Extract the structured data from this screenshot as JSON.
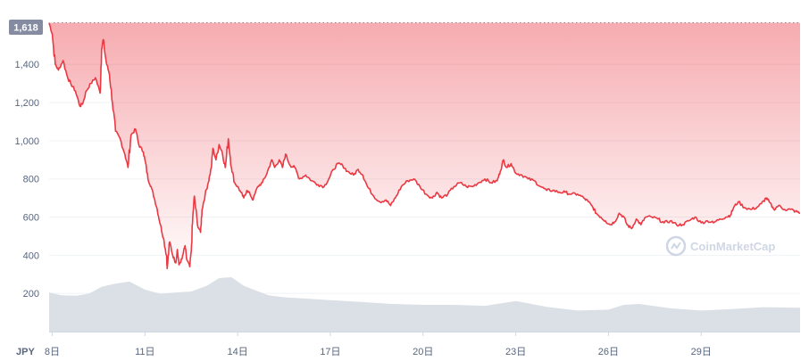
{
  "chart_data": {
    "type": "area",
    "currency_label": "JPY",
    "watermark": "CoinMarketCap",
    "colors": {
      "line": "#ea3943",
      "area_top": "#ea3943",
      "volume": "#d5dae3",
      "badge": "#858ca2",
      "grid": "#eff2f5",
      "axis_text": "#58667e"
    },
    "ylim": [
      0,
      1700
    ],
    "yticks": [
      200,
      400,
      600,
      800,
      1000,
      1200,
      1400
    ],
    "current_price_label": "1,618",
    "current_price": 1618,
    "xlim": [
      7.9,
      32.2
    ],
    "xticks": [
      {
        "x": 8,
        "label": "8日"
      },
      {
        "x": 11,
        "label": "11日"
      },
      {
        "x": 14,
        "label": "14日"
      },
      {
        "x": 17,
        "label": "17日"
      },
      {
        "x": 20,
        "label": "20日"
      },
      {
        "x": 23,
        "label": "23日"
      },
      {
        "x": 26,
        "label": "26日"
      },
      {
        "x": 29,
        "label": "29日"
      }
    ],
    "price": [
      [
        7.9,
        1618
      ],
      [
        8.0,
        1560
      ],
      [
        8.1,
        1400
      ],
      [
        8.2,
        1370
      ],
      [
        8.35,
        1420
      ],
      [
        8.5,
        1330
      ],
      [
        8.6,
        1300
      ],
      [
        8.75,
        1260
      ],
      [
        8.9,
        1180
      ],
      [
        9.0,
        1200
      ],
      [
        9.1,
        1260
      ],
      [
        9.25,
        1300
      ],
      [
        9.4,
        1330
      ],
      [
        9.55,
        1250
      ],
      [
        9.6,
        1480
      ],
      [
        9.65,
        1530
      ],
      [
        9.75,
        1410
      ],
      [
        9.85,
        1350
      ],
      [
        9.95,
        1200
      ],
      [
        10.05,
        1050
      ],
      [
        10.2,
        1010
      ],
      [
        10.35,
        930
      ],
      [
        10.45,
        860
      ],
      [
        10.55,
        1030
      ],
      [
        10.7,
        1060
      ],
      [
        10.8,
        980
      ],
      [
        10.95,
        940
      ],
      [
        11.0,
        900
      ],
      [
        11.1,
        800
      ],
      [
        11.2,
        760
      ],
      [
        11.3,
        700
      ],
      [
        11.4,
        640
      ],
      [
        11.5,
        560
      ],
      [
        11.6,
        490
      ],
      [
        11.7,
        400
      ],
      [
        11.72,
        330
      ],
      [
        11.8,
        470
      ],
      [
        11.9,
        400
      ],
      [
        12.0,
        360
      ],
      [
        12.05,
        430
      ],
      [
        12.1,
        350
      ],
      [
        12.2,
        380
      ],
      [
        12.3,
        450
      ],
      [
        12.35,
        380
      ],
      [
        12.45,
        340
      ],
      [
        12.5,
        420
      ],
      [
        12.55,
        600
      ],
      [
        12.6,
        710
      ],
      [
        12.7,
        560
      ],
      [
        12.8,
        520
      ],
      [
        12.85,
        640
      ],
      [
        12.95,
        720
      ],
      [
        13.05,
        780
      ],
      [
        13.15,
        860
      ],
      [
        13.2,
        960
      ],
      [
        13.3,
        900
      ],
      [
        13.4,
        980
      ],
      [
        13.5,
        940
      ],
      [
        13.6,
        860
      ],
      [
        13.7,
        1010
      ],
      [
        13.8,
        860
      ],
      [
        13.9,
        780
      ],
      [
        14.0,
        760
      ],
      [
        14.1,
        730
      ],
      [
        14.2,
        700
      ],
      [
        14.3,
        740
      ],
      [
        14.4,
        720
      ],
      [
        14.5,
        690
      ],
      [
        14.65,
        760
      ],
      [
        14.8,
        780
      ],
      [
        14.95,
        830
      ],
      [
        15.1,
        900
      ],
      [
        15.2,
        860
      ],
      [
        15.35,
        900
      ],
      [
        15.45,
        860
      ],
      [
        15.55,
        930
      ],
      [
        15.7,
        870
      ],
      [
        15.85,
        860
      ],
      [
        16.0,
        800
      ],
      [
        16.2,
        820
      ],
      [
        16.4,
        790
      ],
      [
        16.6,
        770
      ],
      [
        16.8,
        760
      ],
      [
        16.95,
        800
      ],
      [
        17.1,
        850
      ],
      [
        17.25,
        880
      ],
      [
        17.4,
        870
      ],
      [
        17.55,
        840
      ],
      [
        17.75,
        820
      ],
      [
        17.9,
        850
      ],
      [
        18.05,
        820
      ],
      [
        18.2,
        760
      ],
      [
        18.4,
        710
      ],
      [
        18.6,
        680
      ],
      [
        18.8,
        690
      ],
      [
        18.95,
        660
      ],
      [
        19.1,
        700
      ],
      [
        19.3,
        760
      ],
      [
        19.5,
        790
      ],
      [
        19.7,
        800
      ],
      [
        19.9,
        760
      ],
      [
        20.1,
        720
      ],
      [
        20.3,
        700
      ],
      [
        20.45,
        730
      ],
      [
        20.6,
        700
      ],
      [
        20.8,
        720
      ],
      [
        21.0,
        760
      ],
      [
        21.2,
        780
      ],
      [
        21.4,
        760
      ],
      [
        21.6,
        760
      ],
      [
        21.8,
        780
      ],
      [
        22.0,
        800
      ],
      [
        22.2,
        780
      ],
      [
        22.4,
        790
      ],
      [
        22.5,
        840
      ],
      [
        22.6,
        900
      ],
      [
        22.7,
        860
      ],
      [
        22.85,
        880
      ],
      [
        23.0,
        830
      ],
      [
        23.2,
        820
      ],
      [
        23.4,
        800
      ],
      [
        23.6,
        790
      ],
      [
        23.8,
        760
      ],
      [
        24.0,
        740
      ],
      [
        24.2,
        740
      ],
      [
        24.4,
        730
      ],
      [
        24.6,
        730
      ],
      [
        24.8,
        720
      ],
      [
        25.0,
        720
      ],
      [
        25.2,
        700
      ],
      [
        25.35,
        680
      ],
      [
        25.5,
        650
      ],
      [
        25.6,
        620
      ],
      [
        25.75,
        600
      ],
      [
        25.9,
        580
      ],
      [
        26.05,
        560
      ],
      [
        26.2,
        575
      ],
      [
        26.35,
        620
      ],
      [
        26.5,
        600
      ],
      [
        26.6,
        560
      ],
      [
        26.75,
        540
      ],
      [
        26.9,
        590
      ],
      [
        27.05,
        560
      ],
      [
        27.2,
        600
      ],
      [
        27.4,
        600
      ],
      [
        27.6,
        590
      ],
      [
        27.8,
        570
      ],
      [
        28.0,
        580
      ],
      [
        28.2,
        560
      ],
      [
        28.4,
        560
      ],
      [
        28.6,
        580
      ],
      [
        28.8,
        600
      ],
      [
        29.0,
        570
      ],
      [
        29.2,
        580
      ],
      [
        29.4,
        570
      ],
      [
        29.6,
        590
      ],
      [
        29.8,
        600
      ],
      [
        29.95,
        610
      ],
      [
        30.05,
        650
      ],
      [
        30.2,
        680
      ],
      [
        30.4,
        650
      ],
      [
        30.6,
        640
      ],
      [
        30.8,
        650
      ],
      [
        30.95,
        670
      ],
      [
        31.1,
        700
      ],
      [
        31.2,
        680
      ],
      [
        31.35,
        640
      ],
      [
        31.5,
        660
      ],
      [
        31.7,
        640
      ],
      [
        31.9,
        640
      ],
      [
        32.05,
        630
      ],
      [
        32.2,
        620
      ]
    ],
    "volume": [
      [
        7.9,
        205
      ],
      [
        8.3,
        190
      ],
      [
        8.8,
        188
      ],
      [
        9.2,
        200
      ],
      [
        9.6,
        235
      ],
      [
        10.0,
        250
      ],
      [
        10.5,
        262
      ],
      [
        11.0,
        220
      ],
      [
        11.5,
        198
      ],
      [
        12.0,
        205
      ],
      [
        12.5,
        210
      ],
      [
        13.0,
        240
      ],
      [
        13.4,
        280
      ],
      [
        13.8,
        285
      ],
      [
        14.2,
        240
      ],
      [
        14.6,
        215
      ],
      [
        15.0,
        190
      ],
      [
        15.5,
        180
      ],
      [
        16.0,
        175
      ],
      [
        17.0,
        165
      ],
      [
        18.0,
        155
      ],
      [
        19.0,
        145
      ],
      [
        20.0,
        140
      ],
      [
        21.0,
        140
      ],
      [
        22.0,
        135
      ],
      [
        22.6,
        150
      ],
      [
        23.0,
        160
      ],
      [
        23.4,
        148
      ],
      [
        24.0,
        130
      ],
      [
        25.0,
        110
      ],
      [
        26.0,
        115
      ],
      [
        26.5,
        140
      ],
      [
        27.0,
        145
      ],
      [
        28.0,
        122
      ],
      [
        29.0,
        110
      ],
      [
        30.0,
        118
      ],
      [
        31.0,
        128
      ],
      [
        32.2,
        125
      ]
    ]
  }
}
